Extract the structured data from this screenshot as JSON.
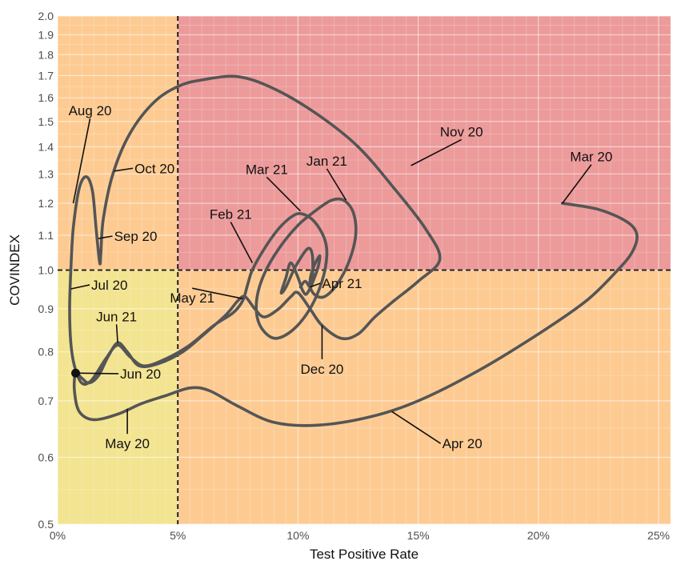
{
  "chart_data": {
    "type": "line",
    "title": "",
    "xlabel": "Test Positive Rate",
    "ylabel": "COVINDEX",
    "x_scale": "linear",
    "y_scale": "log",
    "xlim": [
      0,
      25.5
    ],
    "ylim": [
      0.5,
      2.0
    ],
    "grid": true,
    "x_ticks": [
      {
        "value": 0,
        "label": "0%"
      },
      {
        "value": 5,
        "label": "5%"
      },
      {
        "value": 10,
        "label": "10%"
      },
      {
        "value": 15,
        "label": "15%"
      },
      {
        "value": 20,
        "label": "20%"
      },
      {
        "value": 25,
        "label": "25%"
      }
    ],
    "y_ticks": [
      {
        "value": 0.5,
        "label": "0.5"
      },
      {
        "value": 0.6,
        "label": "0.6"
      },
      {
        "value": 0.7,
        "label": "0.7"
      },
      {
        "value": 0.8,
        "label": "0.8"
      },
      {
        "value": 0.9,
        "label": "0.9"
      },
      {
        "value": 1.0,
        "label": "1.0"
      },
      {
        "value": 1.1,
        "label": "1.1"
      },
      {
        "value": 1.2,
        "label": "1.2"
      },
      {
        "value": 1.3,
        "label": "1.3"
      },
      {
        "value": 1.4,
        "label": "1.4"
      },
      {
        "value": 1.5,
        "label": "1.5"
      },
      {
        "value": 1.6,
        "label": "1.6"
      },
      {
        "value": 1.7,
        "label": "1.7"
      },
      {
        "value": 1.8,
        "label": "1.8"
      },
      {
        "value": 1.9,
        "label": "1.9"
      },
      {
        "value": 2.0,
        "label": "2.0"
      }
    ],
    "thresholds": {
      "x": 5,
      "y": 1.0
    },
    "regions": [
      {
        "name": "low-low",
        "color": "#f3e491"
      },
      {
        "name": "low-high",
        "color": "#fdcb92"
      },
      {
        "name": "high-low",
        "color": "#fdcb92"
      },
      {
        "name": "high-high",
        "color": "#ec9a9a"
      }
    ],
    "line_color": "#555555",
    "path": [
      [
        21.0,
        1.2
      ],
      [
        22.5,
        1.18
      ],
      [
        23.7,
        1.14
      ],
      [
        24.1,
        1.1
      ],
      [
        23.9,
        1.05
      ],
      [
        23.3,
        1.0
      ],
      [
        22.0,
        0.92
      ],
      [
        20.0,
        0.84
      ],
      [
        17.5,
        0.76
      ],
      [
        15.0,
        0.7
      ],
      [
        13.0,
        0.67
      ],
      [
        10.8,
        0.655
      ],
      [
        9.0,
        0.66
      ],
      [
        7.5,
        0.69
      ],
      [
        6.3,
        0.72
      ],
      [
        5.5,
        0.725
      ],
      [
        4.5,
        0.71
      ],
      [
        3.5,
        0.695
      ],
      [
        2.5,
        0.675
      ],
      [
        1.5,
        0.665
      ],
      [
        0.9,
        0.68
      ],
      [
        0.7,
        0.72
      ],
      [
        0.75,
        0.755
      ],
      [
        1.0,
        0.745
      ],
      [
        1.3,
        0.735
      ],
      [
        1.7,
        0.75
      ],
      [
        2.1,
        0.79
      ],
      [
        2.5,
        0.82
      ],
      [
        2.9,
        0.8
      ],
      [
        3.4,
        0.77
      ],
      [
        4.2,
        0.775
      ],
      [
        5.2,
        0.8
      ],
      [
        6.0,
        0.835
      ],
      [
        7.0,
        0.885
      ],
      [
        7.5,
        0.92
      ],
      [
        7.8,
        0.93
      ],
      [
        8.2,
        0.9
      ],
      [
        8.6,
        0.88
      ],
      [
        9.2,
        0.9
      ],
      [
        9.7,
        0.93
      ],
      [
        10.0,
        0.94
      ],
      [
        10.5,
        0.9
      ],
      [
        11.0,
        0.86
      ],
      [
        11.8,
        0.83
      ],
      [
        12.5,
        0.84
      ],
      [
        13.2,
        0.88
      ],
      [
        14.0,
        0.92
      ],
      [
        15.0,
        0.97
      ],
      [
        15.9,
        1.03
      ],
      [
        15.3,
        1.12
      ],
      [
        14.0,
        1.25
      ],
      [
        12.5,
        1.4
      ],
      [
        10.8,
        1.53
      ],
      [
        9.0,
        1.64
      ],
      [
        7.5,
        1.695
      ],
      [
        6.0,
        1.68
      ],
      [
        5.0,
        1.65
      ],
      [
        4.0,
        1.58
      ],
      [
        3.0,
        1.45
      ],
      [
        2.3,
        1.3
      ],
      [
        1.9,
        1.15
      ],
      [
        1.8,
        1.05
      ],
      [
        1.75,
        1.02
      ],
      [
        1.6,
        1.12
      ],
      [
        1.45,
        1.24
      ],
      [
        1.2,
        1.29
      ],
      [
        0.9,
        1.25
      ],
      [
        0.65,
        1.12
      ],
      [
        0.55,
        1.0
      ],
      [
        0.5,
        0.9
      ],
      [
        0.55,
        0.82
      ],
      [
        0.7,
        0.77
      ],
      [
        1.0,
        0.735
      ],
      [
        1.4,
        0.74
      ],
      [
        2.0,
        0.785
      ],
      [
        2.5,
        0.815
      ],
      [
        3.0,
        0.79
      ],
      [
        3.6,
        0.77
      ],
      [
        4.5,
        0.785
      ],
      [
        5.5,
        0.815
      ],
      [
        6.5,
        0.86
      ],
      [
        7.3,
        0.89
      ],
      [
        7.7,
        0.92
      ],
      [
        7.9,
        0.96
      ],
      [
        8.1,
        1.0
      ],
      [
        8.6,
        1.06
      ],
      [
        9.2,
        1.12
      ],
      [
        9.8,
        1.16
      ],
      [
        10.2,
        1.165
      ],
      [
        10.7,
        1.14
      ],
      [
        11.1,
        1.09
      ],
      [
        11.2,
        1.04
      ],
      [
        11.0,
        0.97
      ],
      [
        10.5,
        0.9
      ],
      [
        9.8,
        0.85
      ],
      [
        9.1,
        0.83
      ],
      [
        8.6,
        0.845
      ],
      [
        8.3,
        0.88
      ],
      [
        8.3,
        0.93
      ],
      [
        8.6,
        0.99
      ],
      [
        9.2,
        1.06
      ],
      [
        10.0,
        1.13
      ],
      [
        10.8,
        1.18
      ],
      [
        11.4,
        1.21
      ],
      [
        11.9,
        1.21
      ],
      [
        12.3,
        1.17
      ],
      [
        12.4,
        1.1
      ],
      [
        12.1,
        1.02
      ],
      [
        11.6,
        0.96
      ],
      [
        11.1,
        0.93
      ],
      [
        10.7,
        0.935
      ],
      [
        10.5,
        0.96
      ],
      [
        10.6,
        1.0
      ],
      [
        10.9,
        1.04
      ],
      [
        10.8,
        1.0
      ],
      [
        10.4,
        0.94
      ],
      [
        10.2,
        0.945
      ],
      [
        10.0,
        0.98
      ],
      [
        9.7,
        1.02
      ],
      [
        9.5,
        0.98
      ],
      [
        9.3,
        0.94
      ],
      [
        9.5,
        0.955
      ],
      [
        9.9,
        1.01
      ],
      [
        10.4,
        1.06
      ],
      [
        10.6,
        1.04
      ],
      [
        10.6,
        0.97
      ],
      [
        10.5,
        0.955
      ],
      [
        10.3,
        0.97
      ],
      [
        10.1,
        0.955
      ]
    ],
    "start_point": [
      0.75,
      0.755
    ],
    "annotations": [
      {
        "label": "Mar 20",
        "point": [
          21.0,
          1.2
        ],
        "text_at": [
          22.2,
          1.345
        ],
        "anchor": "middle"
      },
      {
        "label": "Apr 20",
        "point": [
          13.9,
          0.68
        ],
        "text_at": [
          16.0,
          0.615
        ],
        "anchor": "start"
      },
      {
        "label": "May 20",
        "point": [
          2.9,
          0.685
        ],
        "text_at": [
          2.9,
          0.615
        ],
        "anchor": "middle"
      },
      {
        "label": "Jun 20",
        "point": [
          0.75,
          0.755
        ],
        "text_at": [
          2.6,
          0.744
        ],
        "anchor": "start"
      },
      {
        "label": "Jul 20",
        "point": [
          0.55,
          0.95
        ],
        "text_at": [
          1.4,
          0.948
        ],
        "anchor": "start"
      },
      {
        "label": "Aug 20",
        "point": [
          0.65,
          1.2
        ],
        "text_at": [
          1.35,
          1.525
        ],
        "anchor": "middle"
      },
      {
        "label": "Sep 20",
        "point": [
          1.7,
          1.09
        ],
        "text_at": [
          2.35,
          1.083
        ],
        "anchor": "start"
      },
      {
        "label": "Oct 20",
        "point": [
          2.35,
          1.31
        ],
        "text_at": [
          3.2,
          1.303
        ],
        "anchor": "start"
      },
      {
        "label": "Nov 20",
        "point": [
          14.7,
          1.33
        ],
        "text_at": [
          16.8,
          1.44
        ],
        "anchor": "middle"
      },
      {
        "label": "Dec 20",
        "point": [
          11.0,
          0.86
        ],
        "text_at": [
          11.0,
          0.754
        ],
        "anchor": "middle"
      },
      {
        "label": "Jan 21",
        "point": [
          12.0,
          1.21
        ],
        "text_at": [
          11.2,
          1.33
        ],
        "anchor": "middle"
      },
      {
        "label": "Feb 21",
        "point": [
          8.1,
          1.02
        ],
        "text_at": [
          7.2,
          1.15
        ],
        "anchor": "middle"
      },
      {
        "label": "Mar 21",
        "point": [
          10.1,
          1.175
        ],
        "text_at": [
          8.7,
          1.3
        ],
        "anchor": "middle"
      },
      {
        "label": "Apr 21",
        "point": [
          10.5,
          0.955
        ],
        "text_at": [
          11.0,
          0.952
        ],
        "anchor": "start"
      },
      {
        "label": "May 21",
        "point": [
          7.7,
          0.925
        ],
        "text_at": [
          5.6,
          0.915
        ],
        "anchor": "middle"
      },
      {
        "label": "Jun 21",
        "point": [
          2.5,
          0.82
        ],
        "text_at": [
          2.45,
          0.87
        ],
        "anchor": "middle"
      }
    ]
  }
}
